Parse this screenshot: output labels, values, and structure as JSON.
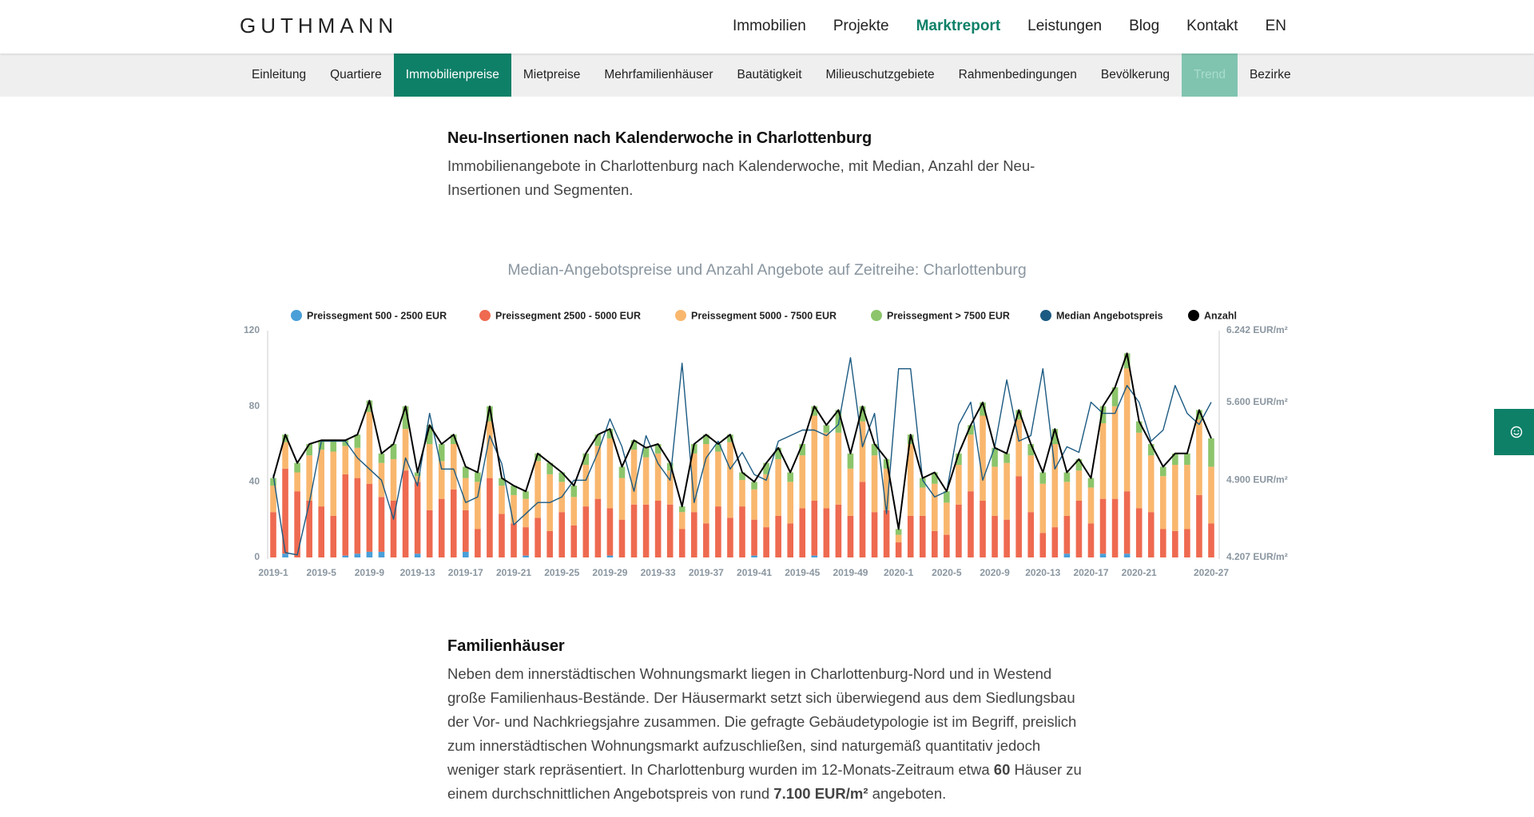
{
  "header": {
    "logo": "GUTHMANN",
    "nav": [
      "Immobilien",
      "Projekte",
      "Marktreport",
      "Leistungen",
      "Blog",
      "Kontakt",
      "EN"
    ]
  },
  "subnav": [
    "Einleitung",
    "Quartiere",
    "Immobilienpreise",
    "Mietpreise",
    "Mehrfamilienhäuser",
    "Bautätigkeit",
    "Milieuschutzgebiete",
    "Rahmenbedingungen",
    "Bevölkerung",
    "Trend",
    "Bezirke"
  ],
  "section1": {
    "title": "Neu-Insertionen nach Kalenderwoche in Charlottenburg",
    "text": "Immobilienangebote in Charlottenburg nach Kalenderwoche, mit Median, Anzahl der Neu-Insertionen und Segmenten."
  },
  "chart_data": {
    "type": "bar",
    "stacked": true,
    "title": "Median-Angebotspreise und Anzahl Angebote auf Zeitreihe: Charlottenburg",
    "grid": false,
    "categories": [
      "2019-1",
      null,
      null,
      null,
      "2019-5",
      null,
      null,
      null,
      "2019-9",
      null,
      null,
      null,
      "2019-13",
      null,
      null,
      null,
      "2019-17",
      null,
      null,
      null,
      "2019-21",
      null,
      null,
      null,
      "2019-25",
      null,
      null,
      null,
      "2019-29",
      null,
      null,
      null,
      "2019-33",
      null,
      null,
      null,
      "2019-37",
      null,
      null,
      null,
      "2019-41",
      null,
      null,
      null,
      "2019-45",
      null,
      null,
      null,
      "2019-49",
      null,
      null,
      null,
      "2020-1",
      null,
      null,
      null,
      "2020-5",
      null,
      null,
      null,
      "2020-9",
      null,
      null,
      null,
      "2020-13",
      null,
      null,
      null,
      "2020-17",
      null,
      null,
      null,
      "2020-21",
      null,
      null,
      null,
      null,
      null,
      "2020-27"
    ],
    "ylim": [
      0,
      120
    ],
    "yticks": [
      0,
      40,
      80,
      120
    ],
    "y2lim": [
      4207,
      6242
    ],
    "y2ticks": [
      {
        "value": 4207,
        "label": "4.207 EUR/m²"
      },
      {
        "value": 4900,
        "label": "4.900 EUR/m²"
      },
      {
        "value": 5600,
        "label": "5.600 EUR/m²"
      },
      {
        "value": 6242,
        "label": "6.242 EUR/m²"
      }
    ],
    "series": [
      {
        "name": "Preissegment 500 - 2500 EUR",
        "color": "#4a9fd8",
        "values": [
          0,
          2,
          0,
          0,
          0,
          0,
          1,
          2,
          3,
          3,
          0,
          0,
          2,
          0,
          0,
          0,
          3,
          0,
          0,
          0,
          0,
          1,
          0,
          0,
          0,
          0,
          0,
          0,
          1,
          0,
          0,
          0,
          0,
          0,
          0,
          0,
          0,
          0,
          0,
          0,
          1,
          0,
          0,
          0,
          0,
          1,
          0,
          0,
          0,
          0,
          0,
          0,
          0,
          0,
          0,
          0,
          0,
          0,
          0,
          0,
          0,
          0,
          0,
          0,
          0,
          0,
          2,
          0,
          0,
          2,
          0,
          2,
          0,
          0,
          0,
          0,
          0,
          0,
          0
        ]
      },
      {
        "name": "Preissegment 2500 - 5000 EUR",
        "color": "#ee6a50",
        "values": [
          24,
          45,
          35,
          30,
          27,
          22,
          43,
          40,
          36,
          29,
          30,
          46,
          38,
          25,
          31,
          36,
          22,
          15,
          42,
          23,
          18,
          15,
          21,
          14,
          24,
          17,
          27,
          31,
          25,
          20,
          28,
          28,
          30,
          28,
          15,
          24,
          18,
          27,
          21,
          27,
          19,
          16,
          22,
          18,
          26,
          29,
          26,
          28,
          22,
          40,
          24,
          25,
          8,
          22,
          22,
          14,
          12,
          28,
          35,
          30,
          22,
          20,
          43,
          24,
          13,
          16,
          20,
          30,
          18,
          29,
          31,
          33,
          26,
          24,
          15,
          14,
          15,
          33,
          18
        ]
      },
      {
        "name": "Preissegment 5000 - 7500 EUR",
        "color": "#f9b76e",
        "values": [
          14,
          14,
          10,
          24,
          30,
          34,
          15,
          16,
          38,
          18,
          22,
          22,
          3,
          35,
          20,
          24,
          17,
          25,
          30,
          15,
          15,
          15,
          30,
          30,
          16,
          15,
          22,
          28,
          37,
          22,
          29,
          25,
          25,
          18,
          9,
          31,
          42,
          29,
          40,
          14,
          16,
          28,
          30,
          22,
          28,
          45,
          40,
          38,
          25,
          32,
          30,
          22,
          4,
          38,
          15,
          25,
          17,
          21,
          30,
          45,
          26,
          30,
          30,
          30,
          26,
          44,
          18,
          16,
          19,
          40,
          49,
          65,
          40,
          30,
          28,
          35,
          34,
          40,
          30
        ]
      },
      {
        "name": "Preissegment > 7500 EUR",
        "color": "#8cc56b",
        "values": [
          4,
          4,
          5,
          6,
          5,
          6,
          3,
          7,
          6,
          5,
          8,
          12,
          2,
          10,
          9,
          5,
          6,
          5,
          8,
          4,
          5,
          4,
          4,
          6,
          5,
          6,
          6,
          6,
          5,
          6,
          5,
          5,
          5,
          4,
          3,
          5,
          5,
          4,
          4,
          4,
          4,
          6,
          6,
          5,
          6,
          5,
          4,
          12,
          8,
          8,
          6,
          5,
          3,
          5,
          5,
          6,
          6,
          6,
          5,
          7,
          10,
          5,
          5,
          6,
          6,
          8,
          5,
          6,
          5,
          9,
          10,
          8,
          6,
          6,
          5,
          6,
          6,
          5,
          15
        ]
      },
      {
        "name": "Median Angebotspreis",
        "color": "#1b5a82",
        "type": "line",
        "axis": "y2",
        "values": [
          4950,
          4250,
          4230,
          4700,
          5250,
          5250,
          5250,
          5100,
          5000,
          4900,
          4550,
          5100,
          4850,
          5500,
          5000,
          5000,
          4700,
          4750,
          5300,
          5050,
          4500,
          4600,
          4700,
          4700,
          4750,
          4900,
          4900,
          5150,
          5450,
          5200,
          4800,
          5300,
          5050,
          4900,
          5950,
          4700,
          5100,
          5250,
          5000,
          5150,
          4950,
          4900,
          5250,
          5300,
          5350,
          5350,
          5300,
          5400,
          6000,
          5200,
          5500,
          4600,
          5900,
          5900,
          4900,
          4750,
          4800,
          5400,
          5600,
          4900,
          5200,
          5800,
          5250,
          5300,
          5900,
          5000,
          5200,
          5150,
          5600,
          5500,
          5500,
          5750,
          5600,
          5250,
          5350,
          5750,
          5500,
          5400,
          5600
        ]
      },
      {
        "name": "Anzahl",
        "color": "#000000",
        "type": "line",
        "values": [
          42,
          65,
          50,
          60,
          62,
          62,
          62,
          65,
          83,
          55,
          60,
          80,
          45,
          70,
          60,
          65,
          48,
          45,
          80,
          42,
          38,
          35,
          55,
          50,
          45,
          38,
          55,
          65,
          68,
          48,
          62,
          58,
          60,
          50,
          27,
          60,
          65,
          60,
          65,
          45,
          40,
          50,
          58,
          45,
          60,
          80,
          70,
          78,
          55,
          80,
          60,
          52,
          15,
          65,
          42,
          45,
          35,
          55,
          70,
          82,
          58,
          55,
          78,
          60,
          45,
          68,
          45,
          52,
          42,
          80,
          90,
          108,
          72,
          60,
          48,
          55,
          55,
          78,
          63
        ]
      }
    ]
  },
  "section2": {
    "title": "Familienhäuser",
    "text": [
      "Neben dem innerstädtischen Wohnungsmarkt liegen in Charlottenburg-Nord und in Westend große Familienhaus-Bestände. Der Häusermarkt setzt sich überwiegend aus dem Siedlungsbau der Vor- und Nachkriegsjahre zusammen. Die gefragte Gebäudetypologie ist im Begriff, preislich zum innerstädtischen Wohnungsmarkt aufzuschließen, sind naturgemäß quantitativ jedoch weniger stark repräsentiert. In Charlottenburg wurden im 12-Monats-Zeitraum etwa ",
      "60",
      " Häuser zu einem durchschnittlichen Angebotspreis von rund ",
      "7.100 EUR/m²",
      " angeboten."
    ]
  }
}
